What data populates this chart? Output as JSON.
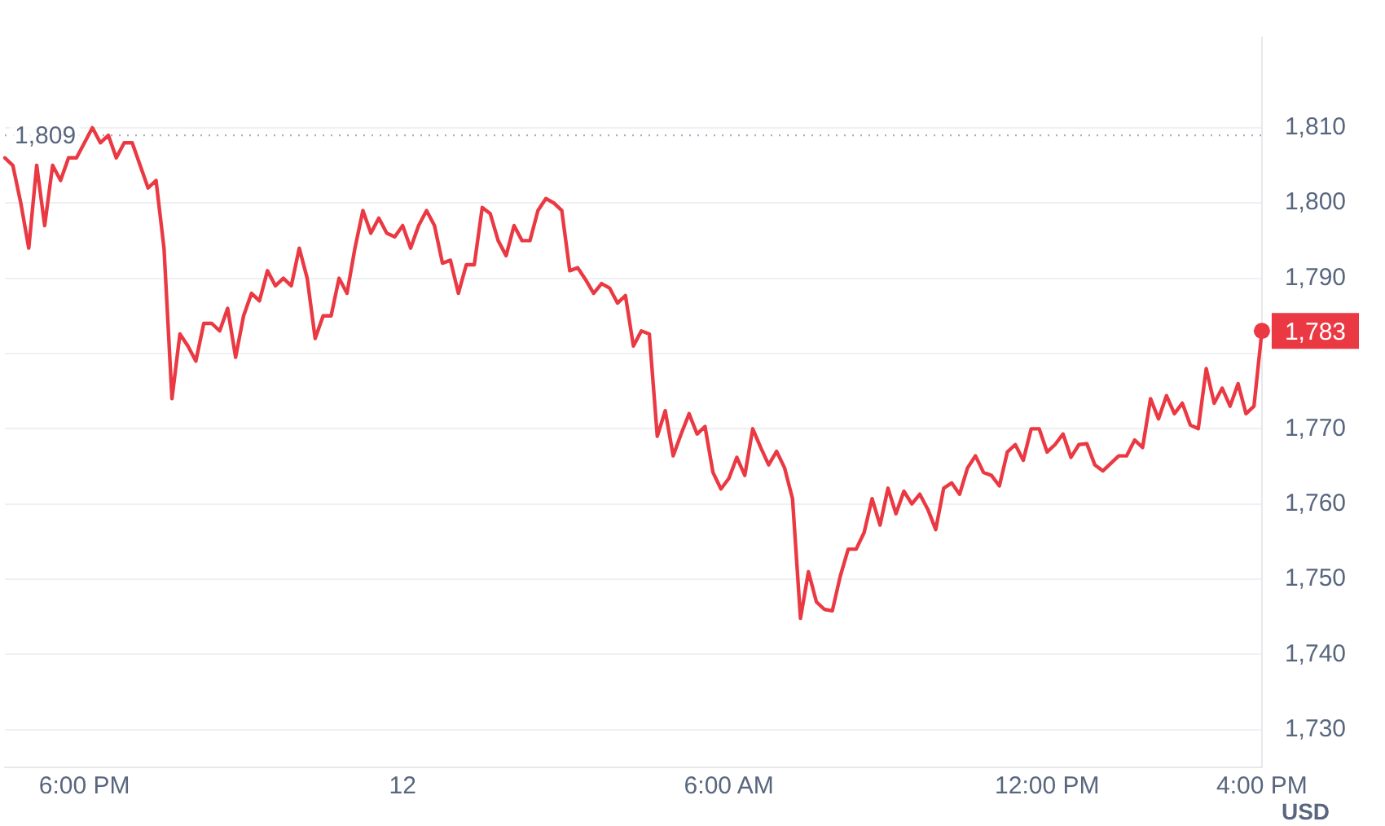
{
  "chart_data": {
    "type": "line",
    "ylabel": "USD",
    "categories": [
      null,
      null,
      null,
      null,
      null,
      null,
      null,
      null,
      null,
      null,
      "6:00 PM",
      null,
      null,
      null,
      null,
      null,
      null,
      null,
      null,
      null,
      null,
      null,
      null,
      null,
      null,
      null,
      null,
      null,
      null,
      null,
      null,
      null,
      null,
      null,
      null,
      null,
      null,
      null,
      null,
      null,
      null,
      null,
      null,
      null,
      null,
      null,
      null,
      null,
      null,
      null,
      "12",
      null,
      null,
      null,
      null,
      null,
      null,
      null,
      null,
      null,
      null,
      null,
      null,
      null,
      null,
      null,
      null,
      null,
      null,
      null,
      null,
      null,
      null,
      null,
      null,
      null,
      null,
      null,
      null,
      null,
      null,
      null,
      null,
      null,
      null,
      null,
      null,
      null,
      null,
      null,
      null,
      "6:00 AM",
      null,
      null,
      null,
      null,
      null,
      null,
      null,
      null,
      null,
      null,
      null,
      null,
      null,
      null,
      null,
      null,
      null,
      null,
      null,
      null,
      null,
      null,
      null,
      null,
      null,
      null,
      null,
      null,
      null,
      null,
      null,
      null,
      null,
      null,
      null,
      null,
      null,
      null,
      null,
      "12:00 PM",
      null,
      null,
      null,
      null,
      null,
      null,
      null,
      null,
      null,
      null,
      null,
      null,
      null,
      null,
      null,
      null,
      null,
      null,
      null,
      null,
      null,
      null,
      null,
      null,
      null,
      null,
      "4:00 PM"
    ],
    "series": [
      {
        "color": "#ea3943",
        "values": [
          1806,
          1805,
          1800,
          1794,
          1805,
          1797,
          1805,
          1803,
          1806,
          1806,
          1808,
          1810,
          1808,
          1809,
          1806,
          1808,
          1808,
          1805,
          1802,
          1803,
          1794,
          1774,
          1782.6,
          1781,
          1779,
          1784,
          1784,
          1783,
          1786,
          1779.5,
          1785,
          1788,
          1787,
          1791,
          1789,
          1790,
          1789,
          1794,
          1790,
          1782,
          1785,
          1785,
          1790,
          1788,
          1794,
          1799,
          1796,
          1798,
          1796,
          1795.5,
          1797,
          1794,
          1797,
          1799,
          1797,
          1792,
          1792.4,
          1788,
          1791.8,
          1791.8,
          1799.4,
          1798.6,
          1795,
          1793,
          1797,
          1795,
          1795,
          1799,
          1800.6,
          1800,
          1799,
          1791,
          1791.4,
          1789.8,
          1788,
          1789.3,
          1788.7,
          1786.7,
          1787.7,
          1781,
          1783,
          1782.6,
          1769,
          1772.4,
          1766.4,
          1769.3,
          1772,
          1769.3,
          1770.3,
          1764.2,
          1762,
          1763.4,
          1766.2,
          1763.8,
          1770,
          1767.5,
          1765.2,
          1767,
          1764.8,
          1760.7,
          1744.8,
          1751,
          1747,
          1746,
          1745.8,
          1750.4,
          1754,
          1754,
          1756.2,
          1760.7,
          1757.2,
          1762.1,
          1758.7,
          1761.7,
          1760,
          1761.3,
          1759.3,
          1756.6,
          1762.1,
          1762.8,
          1761.3,
          1764.8,
          1766.4,
          1764.2,
          1763.8,
          1762.4,
          1766.9,
          1767.9,
          1765.8,
          1770,
          1770,
          1766.9,
          1767.9,
          1769.3,
          1766.2,
          1767.9,
          1768,
          1765.2,
          1764.4,
          1765.4,
          1766.4,
          1766.4,
          1768.5,
          1767.5,
          1774,
          1771.3,
          1774.4,
          1772,
          1773.4,
          1770.5,
          1770,
          1778,
          1773.4,
          1775.4,
          1773,
          1776,
          1772,
          1773,
          1783
        ]
      }
    ],
    "ylim": [
      1725,
      1822
    ],
    "yticks": [
      {
        "value": 1730,
        "label": "1,730"
      },
      {
        "value": 1740,
        "label": "1,740"
      },
      {
        "value": 1750,
        "label": "1,750"
      },
      {
        "value": 1760,
        "label": "1,760"
      },
      {
        "value": 1770,
        "label": "1,770"
      },
      {
        "value": 1780,
        "label": null
      },
      {
        "value": 1790,
        "label": "1,790"
      },
      {
        "value": 1800,
        "label": "1,800"
      },
      {
        "value": 1810,
        "label": "1,810"
      }
    ],
    "grid": "y",
    "legend": false,
    "marker": "none",
    "line_style": "solid",
    "ref_lines": [
      {
        "axis": "y",
        "value": 1809,
        "label": "1,809",
        "color": "#a6b0c3",
        "line_style": "dotted"
      }
    ],
    "annotations": [
      {
        "text": "1,783",
        "x": "4:00 PM",
        "y": 1783
      }
    ]
  }
}
